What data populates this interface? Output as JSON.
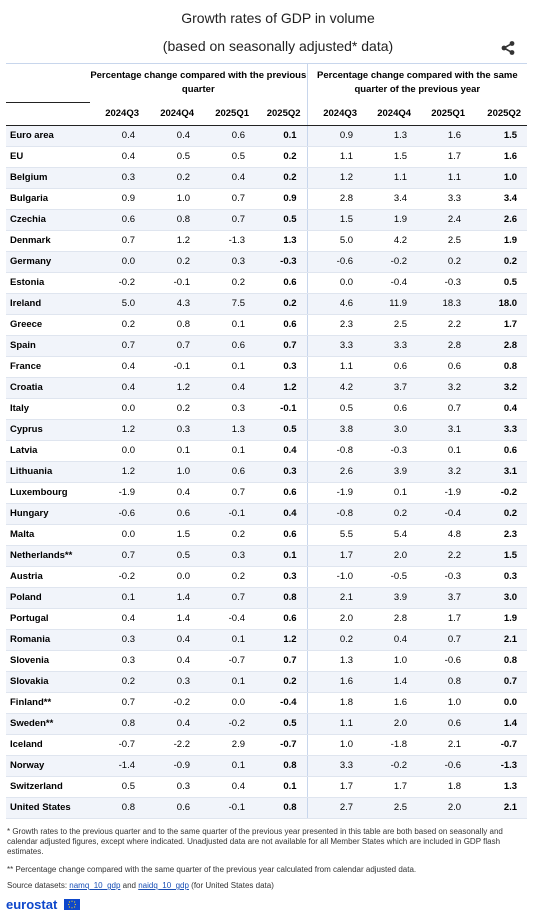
{
  "title": "Growth rates of GDP in volume",
  "subtitle": "(based on seasonally adjusted* data)",
  "icons": {
    "share": "share-icon",
    "flag": "eu-flag-icon"
  },
  "colors": {
    "header_border": "#c8d6ec",
    "shade": "#f1f4fa",
    "brand": "#0e47cb",
    "link": "#1a4fb4"
  },
  "chart_data": {
    "type": "table",
    "groups": [
      "Percentage change compared with the previous quarter",
      "Percentage change compared with the same quarter of the previous year"
    ],
    "quarters": [
      "2024Q3",
      "2024Q4",
      "2025Q1",
      "2025Q2",
      "2024Q3",
      "2024Q4",
      "2025Q1",
      "2025Q2"
    ],
    "rows": [
      {
        "country": "Euro area",
        "values": [
          "0.4",
          "0.4",
          "0.6",
          "0.1",
          "0.9",
          "1.3",
          "1.6",
          "1.5"
        ]
      },
      {
        "country": "EU",
        "values": [
          "0.4",
          "0.5",
          "0.5",
          "0.2",
          "1.1",
          "1.5",
          "1.7",
          "1.6"
        ]
      },
      {
        "country": "Belgium",
        "values": [
          "0.3",
          "0.2",
          "0.4",
          "0.2",
          "1.2",
          "1.1",
          "1.1",
          "1.0"
        ]
      },
      {
        "country": "Bulgaria",
        "values": [
          "0.9",
          "1.0",
          "0.7",
          "0.9",
          "2.8",
          "3.4",
          "3.3",
          "3.4"
        ]
      },
      {
        "country": "Czechia",
        "values": [
          "0.6",
          "0.8",
          "0.7",
          "0.5",
          "1.5",
          "1.9",
          "2.4",
          "2.6"
        ]
      },
      {
        "country": "Denmark",
        "values": [
          "0.7",
          "1.2",
          "-1.3",
          "1.3",
          "5.0",
          "4.2",
          "2.5",
          "1.9"
        ]
      },
      {
        "country": "Germany",
        "values": [
          "0.0",
          "0.2",
          "0.3",
          "-0.3",
          "-0.6",
          "-0.2",
          "0.2",
          "0.2"
        ]
      },
      {
        "country": "Estonia",
        "values": [
          "-0.2",
          "-0.1",
          "0.2",
          "0.6",
          "0.0",
          "-0.4",
          "-0.3",
          "0.5"
        ]
      },
      {
        "country": "Ireland",
        "values": [
          "5.0",
          "4.3",
          "7.5",
          "0.2",
          "4.6",
          "11.9",
          "18.3",
          "18.0"
        ]
      },
      {
        "country": "Greece",
        "values": [
          "0.2",
          "0.8",
          "0.1",
          "0.6",
          "2.3",
          "2.5",
          "2.2",
          "1.7"
        ]
      },
      {
        "country": "Spain",
        "values": [
          "0.7",
          "0.7",
          "0.6",
          "0.7",
          "3.3",
          "3.3",
          "2.8",
          "2.8"
        ]
      },
      {
        "country": "France",
        "values": [
          "0.4",
          "-0.1",
          "0.1",
          "0.3",
          "1.1",
          "0.6",
          "0.6",
          "0.8"
        ]
      },
      {
        "country": "Croatia",
        "values": [
          "0.4",
          "1.2",
          "0.4",
          "1.2",
          "4.2",
          "3.7",
          "3.2",
          "3.2"
        ]
      },
      {
        "country": "Italy",
        "values": [
          "0.0",
          "0.2",
          "0.3",
          "-0.1",
          "0.5",
          "0.6",
          "0.7",
          "0.4"
        ]
      },
      {
        "country": "Cyprus",
        "values": [
          "1.2",
          "0.3",
          "1.3",
          "0.5",
          "3.8",
          "3.0",
          "3.1",
          "3.3"
        ]
      },
      {
        "country": "Latvia",
        "values": [
          "0.0",
          "0.1",
          "0.1",
          "0.4",
          "-0.8",
          "-0.3",
          "0.1",
          "0.6"
        ]
      },
      {
        "country": "Lithuania",
        "values": [
          "1.2",
          "1.0",
          "0.6",
          "0.3",
          "2.6",
          "3.9",
          "3.2",
          "3.1"
        ]
      },
      {
        "country": "Luxembourg",
        "values": [
          "-1.9",
          "0.4",
          "0.7",
          "0.6",
          "-1.9",
          "0.1",
          "-1.9",
          "-0.2"
        ]
      },
      {
        "country": "Hungary",
        "values": [
          "-0.6",
          "0.6",
          "-0.1",
          "0.4",
          "-0.8",
          "0.2",
          "-0.4",
          "0.2"
        ]
      },
      {
        "country": "Malta",
        "values": [
          "0.0",
          "1.5",
          "0.2",
          "0.6",
          "5.5",
          "5.4",
          "4.8",
          "2.3"
        ]
      },
      {
        "country": "Netherlands**",
        "values": [
          "0.7",
          "0.5",
          "0.3",
          "0.1",
          "1.7",
          "2.0",
          "2.2",
          "1.5"
        ]
      },
      {
        "country": "Austria",
        "values": [
          "-0.2",
          "0.0",
          "0.2",
          "0.3",
          "-1.0",
          "-0.5",
          "-0.3",
          "0.3"
        ]
      },
      {
        "country": "Poland",
        "values": [
          "0.1",
          "1.4",
          "0.7",
          "0.8",
          "2.1",
          "3.9",
          "3.7",
          "3.0"
        ]
      },
      {
        "country": "Portugal",
        "values": [
          "0.4",
          "1.4",
          "-0.4",
          "0.6",
          "2.0",
          "2.8",
          "1.7",
          "1.9"
        ]
      },
      {
        "country": "Romania",
        "values": [
          "0.3",
          "0.4",
          "0.1",
          "1.2",
          "0.2",
          "0.4",
          "0.7",
          "2.1"
        ]
      },
      {
        "country": "Slovenia",
        "values": [
          "0.3",
          "0.4",
          "-0.7",
          "0.7",
          "1.3",
          "1.0",
          "-0.6",
          "0.8"
        ]
      },
      {
        "country": "Slovakia",
        "values": [
          "0.2",
          "0.3",
          "0.1",
          "0.2",
          "1.6",
          "1.4",
          "0.8",
          "0.7"
        ]
      },
      {
        "country": "Finland**",
        "values": [
          "0.7",
          "-0.2",
          "0.0",
          "-0.4",
          "1.8",
          "1.6",
          "1.0",
          "0.0"
        ]
      },
      {
        "country": "Sweden**",
        "values": [
          "0.8",
          "0.4",
          "-0.2",
          "0.5",
          "1.1",
          "2.0",
          "0.6",
          "1.4"
        ]
      },
      {
        "country": "Iceland",
        "values": [
          "-0.7",
          "-2.2",
          "2.9",
          "-0.7",
          "1.0",
          "-1.8",
          "2.1",
          "-0.7"
        ]
      },
      {
        "country": "Norway",
        "values": [
          "-1.4",
          "-0.9",
          "0.1",
          "0.8",
          "3.3",
          "-0.2",
          "-0.6",
          "-1.3"
        ]
      },
      {
        "country": "Switzerland",
        "values": [
          "0.5",
          "0.3",
          "0.4",
          "0.1",
          "1.7",
          "1.7",
          "1.8",
          "1.3"
        ]
      },
      {
        "country": "United States",
        "values": [
          "0.8",
          "0.6",
          "-0.1",
          "0.8",
          "2.7",
          "2.5",
          "2.0",
          "2.1"
        ]
      }
    ]
  },
  "footnotes": {
    "note1": "* Growth rates to the previous quarter and to the same quarter of the previous year presented in this table are both based on seasonally and calendar adjusted figures, except where indicated. Unadjusted data are not available for all Member States which are included in GDP flash estimates.",
    "note2": "** Percentage change compared with the same quarter of the previous year calculated from calendar adjusted data.",
    "source_prefix": "Source datasets: ",
    "link1": "namq_10_gdp",
    "and_text": " and ",
    "link2": "naidq_10_gdp",
    "source_suffix": " (for United States data)"
  },
  "brand": "eurostat"
}
